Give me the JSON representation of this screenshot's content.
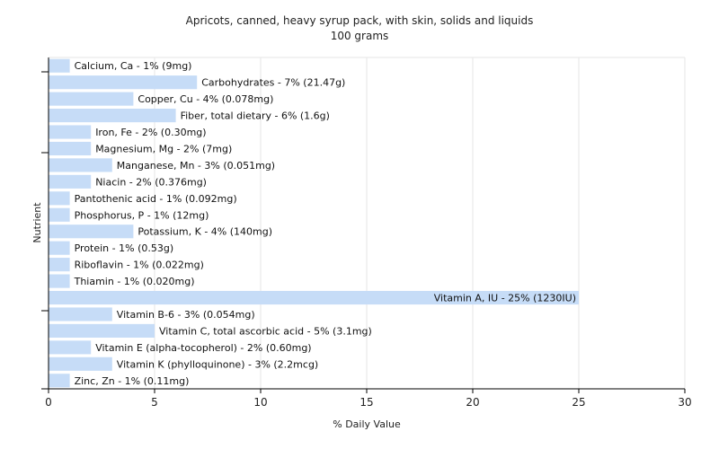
{
  "chart_data": {
    "type": "bar",
    "orientation": "horizontal",
    "title": "Apricots, canned, heavy syrup pack, with skin, solids and liquids",
    "subtitle": "100 grams",
    "xlabel": "% Daily Value",
    "ylabel": "Nutrient",
    "xlim": [
      0,
      30
    ],
    "xticks": [
      "0",
      "5",
      "10",
      "15",
      "20",
      "25",
      "30"
    ],
    "grid": true,
    "bar_color": "#c6dcf7",
    "categories": [
      "Calcium, Ca",
      "Carbohydrates",
      "Copper, Cu",
      "Fiber, total dietary",
      "Iron, Fe",
      "Magnesium, Mg",
      "Manganese, Mn",
      "Niacin",
      "Pantothenic acid",
      "Phosphorus, P",
      "Potassium, K",
      "Protein",
      "Riboflavin",
      "Thiamin",
      "Vitamin A, IU",
      "Vitamin B-6",
      "Vitamin C, total ascorbic acid",
      "Vitamin E (alpha-tocopherol)",
      "Vitamin K (phylloquinone)",
      "Zinc, Zn"
    ],
    "values": [
      1,
      7,
      4,
      6,
      2,
      2,
      3,
      2,
      1,
      1,
      4,
      1,
      1,
      1,
      25,
      3,
      5,
      2,
      3,
      1
    ],
    "labels": [
      "Calcium, Ca - 1% (9mg)",
      "Carbohydrates - 7% (21.47g)",
      "Copper, Cu - 4% (0.078mg)",
      "Fiber, total dietary - 6% (1.6g)",
      "Iron, Fe - 2% (0.30mg)",
      "Magnesium, Mg - 2% (7mg)",
      "Manganese, Mn - 3% (0.051mg)",
      "Niacin - 2% (0.376mg)",
      "Pantothenic acid - 1% (0.092mg)",
      "Phosphorus, P - 1% (12mg)",
      "Potassium, K - 4% (140mg)",
      "Protein - 1% (0.53g)",
      "Riboflavin - 1% (0.022mg)",
      "Thiamin - 1% (0.020mg)",
      "Vitamin A, IU - 25% (1230IU)",
      "Vitamin B-6 - 3% (0.054mg)",
      "Vitamin C, total ascorbic acid - 5% (3.1mg)",
      "Vitamin E (alpha-tocopherol) - 2% (0.60mg)",
      "Vitamin K (phylloquinone) - 3% (2.2mcg)",
      "Zinc, Zn - 1% (0.11mg)"
    ]
  }
}
